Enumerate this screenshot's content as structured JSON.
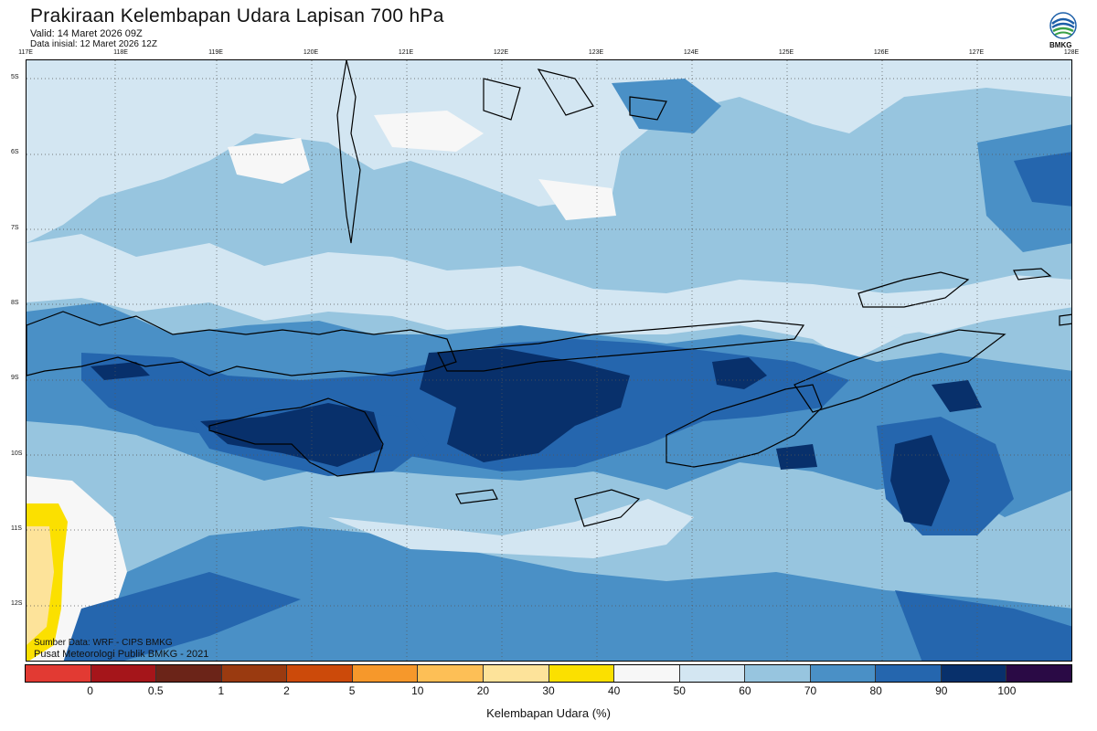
{
  "header": {
    "title": "Prakiraan Kelembapan Udara Lapisan 700 hPa",
    "valid": "Valid: 14 Maret 2026 09Z",
    "initial": "Data inisial: 12 Maret 2026 12Z",
    "logo_text": "BMKG"
  },
  "grid": {
    "lon_labels": [
      "117E",
      "118E",
      "119E",
      "120E",
      "121E",
      "122E",
      "123E",
      "124E",
      "125E",
      "126E",
      "127E",
      "128E"
    ],
    "lat_labels": [
      "5S",
      "6S",
      "7S",
      "8S",
      "9S",
      "10S",
      "11S",
      "12S"
    ]
  },
  "credits": {
    "source": "Sumber Data: WRF - CIPS BMKG",
    "center": "Pusat Meteorologi Publik BMKG - 2021"
  },
  "colorbar": {
    "colors": [
      "#e23a33",
      "#a5151a",
      "#6b2418",
      "#9a3a10",
      "#cc4a0a",
      "#f6982b",
      "#fdbf56",
      "#fde39a",
      "#fbe000",
      "#f7f7f7",
      "#d3e6f2",
      "#97c5df",
      "#4a90c6",
      "#2566ae",
      "#08306b",
      "#2a0a45"
    ],
    "labels": [
      "0",
      "0.5",
      "1",
      "2",
      "5",
      "10",
      "20",
      "30",
      "40",
      "50",
      "60",
      "70",
      "80",
      "90",
      "100"
    ],
    "title": "Kelembapan Udara (%)"
  },
  "map_colors": {
    "base": "#97c5df",
    "light": "#d3e6f2",
    "white": "#f7f7f7",
    "mid": "#4a90c6",
    "dark": "#2566ae",
    "darkest": "#08306b",
    "yellow": "#fbe000",
    "paleyellow": "#fde39a"
  }
}
